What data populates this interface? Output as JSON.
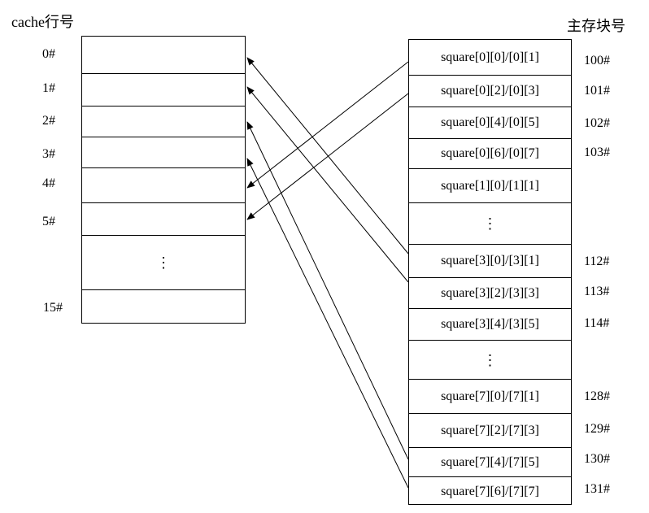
{
  "cache": {
    "title": "cache行号",
    "row_labels": [
      "0#",
      "1#",
      "2#",
      "3#",
      "4#",
      "5#",
      "15#"
    ],
    "ellipsis": "⋮"
  },
  "memory": {
    "title": "主存块号",
    "cells": [
      "square[0][0]/[0][1]",
      "square[0][2]/[0][3]",
      "square[0][4]/[0][5]",
      "square[0][6]/[0][7]",
      "square[1][0]/[1][1]",
      "⋮",
      "square[3][0]/[3][1]",
      "square[3][2]/[3][3]",
      "square[3][4]/[3][5]",
      "⋮",
      "square[7][0]/[7][1]",
      "square[7][2]/[7][3]",
      "square[7][4]/[7][5]",
      "square[7][6]/[7][7]"
    ],
    "block_labels": [
      "100#",
      "101#",
      "102#",
      "103#",
      "112#",
      "113#",
      "114#",
      "128#",
      "129#",
      "130#",
      "131#"
    ]
  }
}
